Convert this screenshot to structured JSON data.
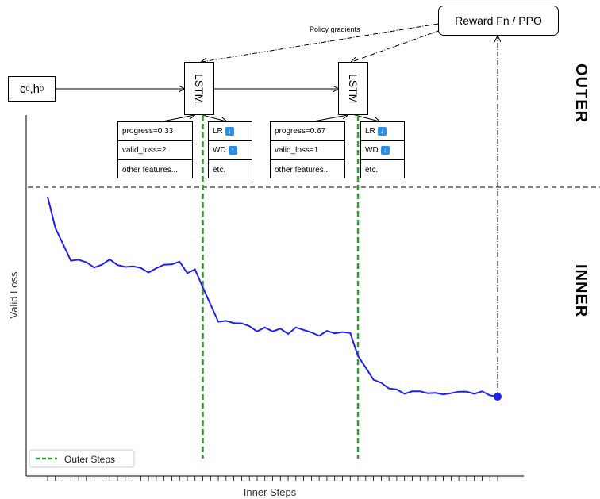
{
  "outer_label": "OUTER",
  "inner_label": "INNER",
  "reward_box": "Reward Fn / PPO",
  "policy_gradients": "Policy gradients",
  "init_state": {
    "c": "c",
    "c_sub": "0",
    "h": "h",
    "h_sub": "0"
  },
  "lstm_label": "LSTM",
  "step1": {
    "features": [
      "progress=0.33",
      "valid_loss=2",
      "other features..."
    ],
    "actions": [
      {
        "label": "LR",
        "dir": "down"
      },
      {
        "label": "WD",
        "dir": "up"
      },
      {
        "label": "etc.",
        "dir": ""
      }
    ]
  },
  "step2": {
    "features": [
      "progress=0.67",
      "valid_loss=1",
      "other features..."
    ],
    "actions": [
      {
        "label": "LR",
        "dir": "down"
      },
      {
        "label": "WD",
        "dir": "down"
      },
      {
        "label": "etc.",
        "dir": ""
      }
    ]
  },
  "chart_data": {
    "type": "line",
    "xlabel": "Inner Steps",
    "ylabel": "Valid Loss",
    "legend": {
      "entries": [
        "Outer Steps"
      ],
      "placement": "bottom-left"
    },
    "series": [
      {
        "name": "",
        "color": "#1f1ff0",
        "values": [
          10.0,
          9.0,
          8.48,
          7.96,
          7.99,
          7.91,
          7.74,
          7.83,
          8.0,
          7.82,
          7.76,
          7.78,
          7.73,
          7.58,
          7.72,
          7.83,
          7.84,
          7.93,
          7.56,
          7.68,
          7.11,
          6.56,
          6.01,
          6.04,
          5.97,
          5.96,
          5.87,
          5.7,
          5.83,
          5.7,
          5.79,
          5.62,
          5.83,
          5.75,
          5.67,
          5.56,
          5.72,
          5.64,
          5.68,
          5.65,
          4.92,
          4.55,
          4.16,
          4.06,
          3.88,
          3.85,
          3.71,
          3.79,
          3.79,
          3.73,
          3.74,
          3.69,
          3.73,
          3.78,
          3.78,
          3.71,
          3.79,
          3.66,
          3.62
        ]
      }
    ],
    "outer_steps_at": [
      20,
      40
    ],
    "endpoint_marker": true,
    "colors": {
      "outer_steps": "#2ca02c",
      "loss": "#1f1ff0"
    }
  }
}
